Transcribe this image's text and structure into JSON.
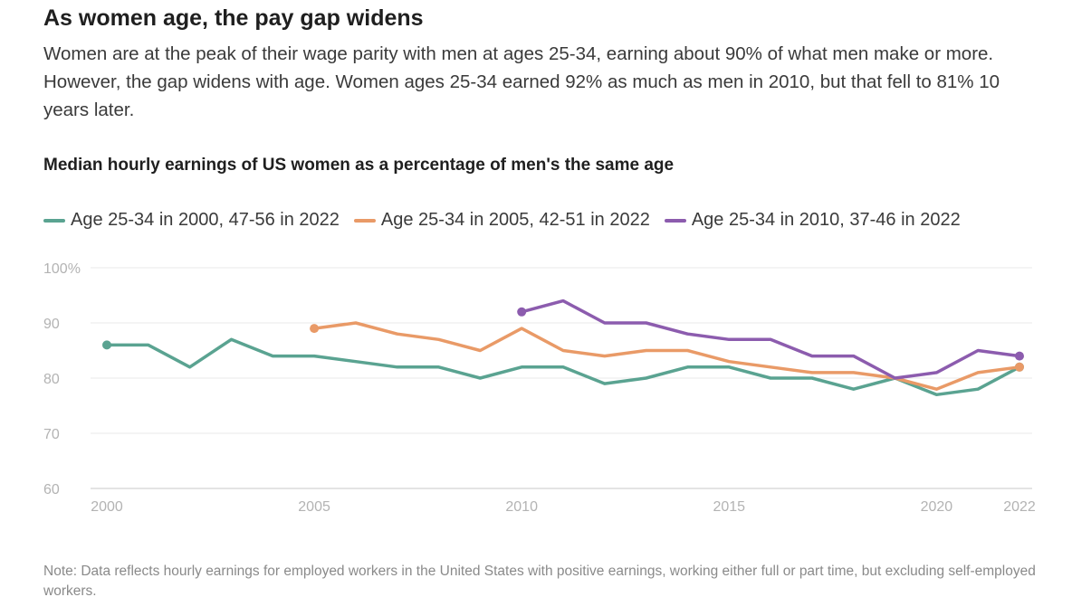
{
  "headline": "As women age, the pay gap widens",
  "dek": "Women are at the peak of their wage parity with men at ages 25-34, earning about 90% of what men make or more. However, the gap widens with age. Women ages 25-34 earned 92% as much as men in 2010, but that fell to 81% 10 years later.",
  "note": "Note: Data reflects hourly earnings for employed workers in the United States with positive earnings, working either full or part time, but excluding self-employed workers.",
  "chart_data": {
    "type": "line",
    "title": "Median hourly earnings of US women as a percentage of men's the same age",
    "xlabel": "",
    "ylabel": "",
    "xlim": [
      2000,
      2022
    ],
    "ylim": [
      60,
      100
    ],
    "x_ticks": [
      2000,
      2005,
      2010,
      2015,
      2020,
      2022
    ],
    "x_tick_labels": [
      "2000",
      "2005",
      "2010",
      "2015",
      "2020",
      "2022"
    ],
    "y_ticks": [
      100,
      90,
      80,
      70,
      60
    ],
    "y_tick_labels": [
      "100%",
      "90",
      "80",
      "70",
      "60"
    ],
    "grid": true,
    "legend_position": "top-left",
    "series": [
      {
        "name": "Age 25-34 in 2000, 47-56 in 2022",
        "color": "#5aa391",
        "x": [
          2000,
          2001,
          2002,
          2003,
          2004,
          2005,
          2006,
          2007,
          2008,
          2009,
          2010,
          2011,
          2012,
          2013,
          2014,
          2015,
          2016,
          2017,
          2018,
          2019,
          2020,
          2021,
          2022
        ],
        "values": [
          86,
          86,
          82,
          87,
          84,
          84,
          83,
          82,
          82,
          80,
          82,
          82,
          79,
          80,
          82,
          82,
          80,
          80,
          78,
          80,
          77,
          78,
          82
        ]
      },
      {
        "name": "Age 25-34 in 2005, 42-51 in 2022",
        "color": "#e99a67",
        "x": [
          2005,
          2006,
          2007,
          2008,
          2009,
          2010,
          2011,
          2012,
          2013,
          2014,
          2015,
          2016,
          2017,
          2018,
          2019,
          2020,
          2021,
          2022
        ],
        "values": [
          89,
          90,
          88,
          87,
          85,
          89,
          85,
          84,
          85,
          85,
          83,
          82,
          81,
          81,
          80,
          78,
          81,
          82
        ]
      },
      {
        "name": "Age 25-34 in 2010, 37-46 in 2022",
        "color": "#8c5cae",
        "x": [
          2010,
          2011,
          2012,
          2013,
          2014,
          2015,
          2016,
          2017,
          2018,
          2019,
          2020,
          2021,
          2022
        ],
        "values": [
          92,
          94,
          90,
          90,
          88,
          87,
          87,
          84,
          84,
          80,
          81,
          85,
          84
        ]
      }
    ]
  }
}
